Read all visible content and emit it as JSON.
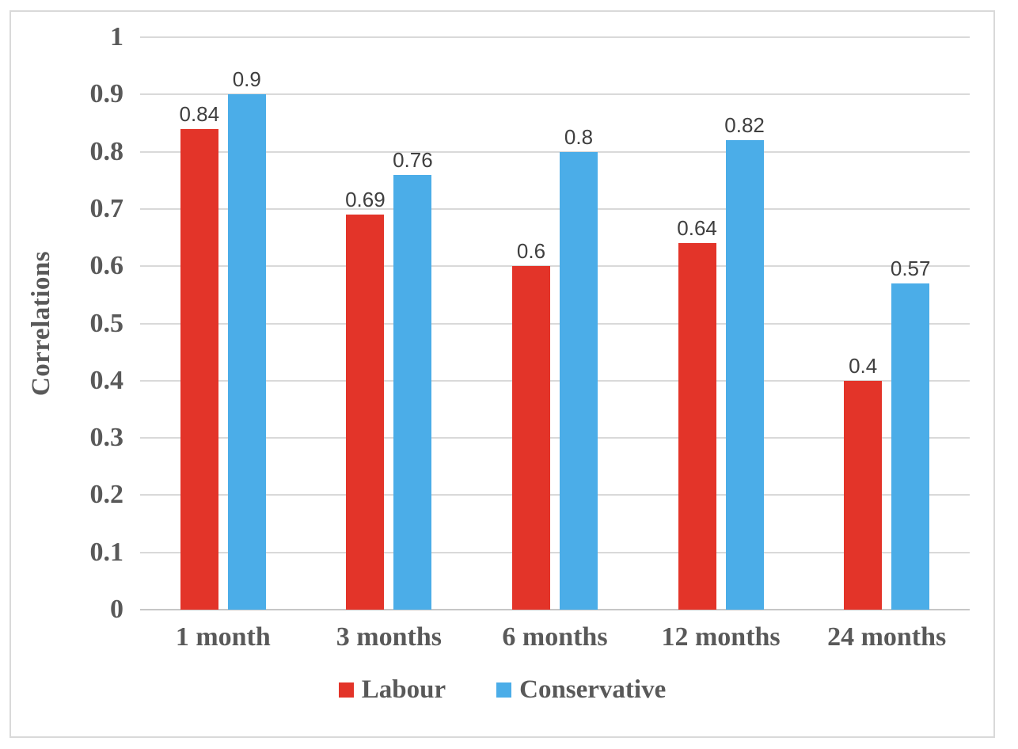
{
  "chart_data": {
    "type": "bar",
    "title": "",
    "xlabel": "",
    "ylabel": "Correlations",
    "categories": [
      "1 month",
      "3 months",
      "6 months",
      "12 months",
      "24 months"
    ],
    "series": [
      {
        "name": "Labour",
        "color": "#E33429",
        "values": [
          0.84,
          0.69,
          0.6,
          0.64,
          0.4
        ]
      },
      {
        "name": "Conservative",
        "color": "#4BADE8",
        "values": [
          0.9,
          0.76,
          0.8,
          0.82,
          0.57
        ]
      }
    ],
    "ylim": [
      0,
      1
    ],
    "yticks": [
      {
        "label": "1",
        "value": 1
      },
      {
        "label": "0.9",
        "value": 0.9
      },
      {
        "label": "0.8",
        "value": 0.8
      },
      {
        "label": "0.7",
        "value": 0.7
      },
      {
        "label": "0.6",
        "value": 0.6
      },
      {
        "label": "0.5",
        "value": 0.5
      },
      {
        "label": "0.4",
        "value": 0.4
      },
      {
        "label": "0.3",
        "value": 0.3
      },
      {
        "label": "0.2",
        "value": 0.2
      },
      {
        "label": "0.1",
        "value": 0.1
      },
      {
        "label": "0",
        "value": 0
      }
    ],
    "grid": true,
    "legend_position": "bottom",
    "colors": {
      "grid": "#D9D9D9",
      "axis_line": "#C6C6C6",
      "frame_border": "#D9D9D9",
      "tick_text": "#595959",
      "data_label_text": "#3F3F3F",
      "background": "#FFFFFF"
    }
  }
}
